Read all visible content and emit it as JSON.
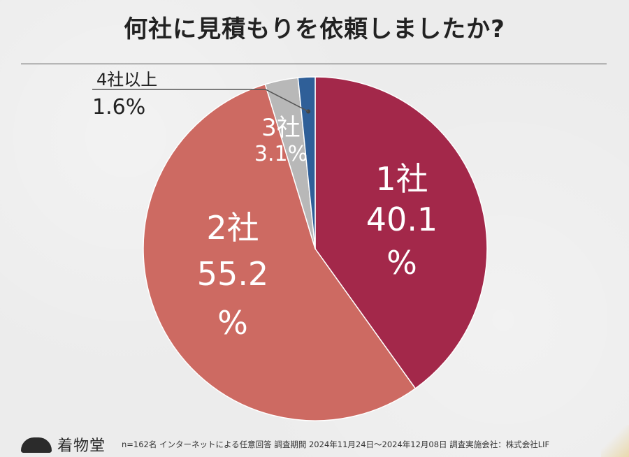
{
  "chart_data": {
    "type": "pie",
    "title": "何社に見積もりを依頼しましたか?",
    "categories": [
      "1社",
      "2社",
      "3社",
      "4社以上"
    ],
    "values": [
      40.1,
      55.2,
      3.1,
      1.6
    ],
    "value_labels": [
      "40.1",
      "55.2",
      "3.1%",
      "1.6%"
    ],
    "percent_sign": "%",
    "colors": [
      "#a3284a",
      "#cd6a62",
      "#b8b8b8",
      "#2f5f98"
    ],
    "start": "12 o'clock",
    "direction": "clockwise"
  },
  "footer": {
    "brand": "着物堂",
    "note": "n=162名 インターネットによる任意回答 調査期間 2024年11月24日〜2024年12月08日 調査実施会社：株式会社LIF"
  }
}
